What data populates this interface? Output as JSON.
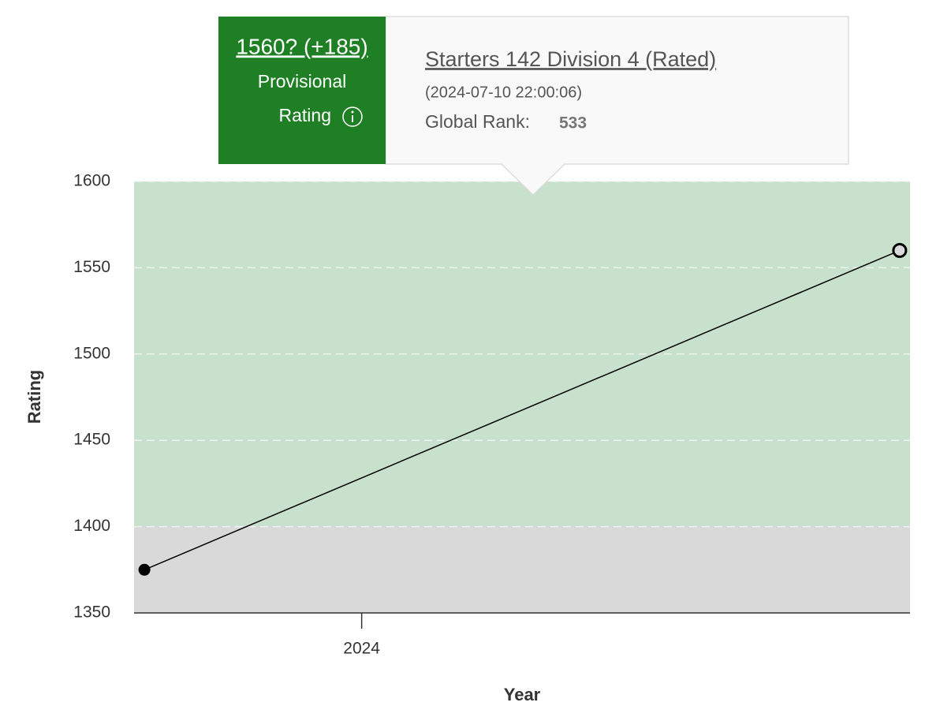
{
  "chart_data": {
    "type": "line",
    "x_label": "Year",
    "y_label": "Rating",
    "x": [
      2023.79,
      2024.52
    ],
    "values": [
      1375,
      1560
    ],
    "color": "#000000",
    "xlim": [
      2023.78,
      2024.53
    ],
    "xticks": [
      2024
    ],
    "ylim": [
      1350,
      1600
    ],
    "yticks": [
      1350,
      1400,
      1450,
      1500,
      1550,
      1600
    ],
    "grid": true,
    "bands": [
      {
        "from": 1350,
        "to": 1400,
        "color": "#d9d9d9"
      },
      {
        "from": 1400,
        "to": 1600,
        "color": "#c8e1cc"
      }
    ],
    "tooltip": {
      "rating": "1560? (+185)",
      "status_line1": "Provisional",
      "status_line2": "Rating",
      "contest": "Starters 142 Division 4 (Rated)",
      "time": "(2024-07-10 22:00:06)",
      "rank_label": "Global Rank:",
      "rank": "533",
      "color": "#1e7f24"
    }
  }
}
